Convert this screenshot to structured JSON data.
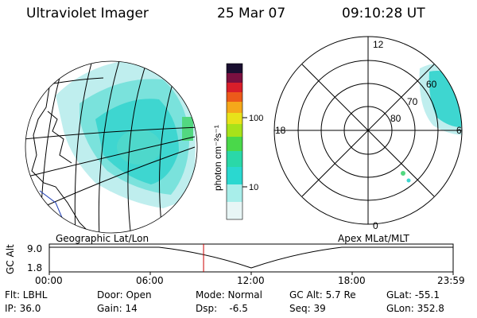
{
  "header": {
    "title": "Ultraviolet Imager",
    "date": "25 Mar 07",
    "time": "09:10:28 UT"
  },
  "colorbar": {
    "label": "photon cm⁻²s⁻¹",
    "ticks": [
      "100",
      "10"
    ]
  },
  "polar": {
    "mlt_labels": [
      "12",
      "18",
      "6",
      "0"
    ],
    "lat_labels": [
      "60",
      "70",
      "80"
    ]
  },
  "timeline": {
    "left_title": "Geographic Lat/Lon",
    "right_title": "Apex MLat/MLT",
    "ylabel": "GC Alt",
    "yticks": [
      "9.0",
      "1.8"
    ],
    "xticks": [
      "00:00",
      "06:00",
      "12:00",
      "18:00",
      "23:59"
    ],
    "marker_time_fraction": 0.382
  },
  "info": {
    "col1": [
      "Flt: LBHL",
      "IP: 36.0"
    ],
    "col2": [
      "Door: Open",
      "Gain: 14"
    ],
    "col3": [
      "Mode: Normal",
      "Dsp:    -6.5"
    ],
    "col4": [
      "GC Alt: 5.7 Re",
      "Seq: 39"
    ],
    "col5": [
      "GLat: -55.1",
      "GLon: 352.8"
    ]
  },
  "colors": {
    "aurora_light": "#bfeeee",
    "aurora_cyan": "#3ed6d0",
    "aurora_green": "#52d880",
    "marker": "#cc0000"
  }
}
